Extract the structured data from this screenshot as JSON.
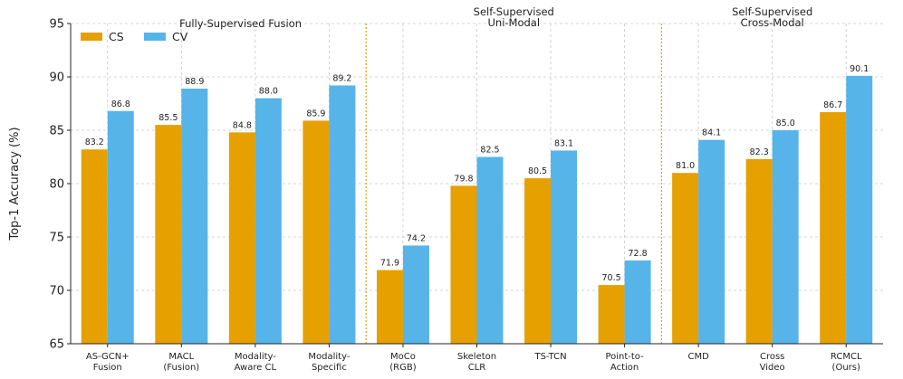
{
  "chart_data": {
    "type": "bar",
    "ylabel": "Top-1 Accuracy (%)",
    "xlabel": "",
    "ylim": [
      65,
      95
    ],
    "yticks": [
      65,
      70,
      75,
      80,
      85,
      90,
      95
    ],
    "grid": true,
    "legend_position": "top-left",
    "categories": [
      [
        "AS-GCN+",
        "Fusion"
      ],
      [
        "MACL",
        "(Fusion)"
      ],
      [
        "Modality-",
        "Aware CL"
      ],
      [
        "Modality-",
        "Specific"
      ],
      [
        "MoCo",
        "(RGB)"
      ],
      [
        "Skeleton",
        "CLR"
      ],
      [
        "TS-TCN"
      ],
      [
        "Point-to-",
        "Action"
      ],
      [
        "CMD"
      ],
      [
        "Cross",
        "Video"
      ],
      [
        "RCMCL",
        "(Ours)"
      ]
    ],
    "series": [
      {
        "name": "CS",
        "color": "#E6A000",
        "values": [
          83.2,
          85.5,
          84.8,
          85.9,
          71.9,
          79.8,
          80.5,
          70.5,
          81.0,
          82.3,
          86.7
        ]
      },
      {
        "name": "CV",
        "color": "#56B4E9",
        "values": [
          86.8,
          88.9,
          88.0,
          89.2,
          74.2,
          82.5,
          83.1,
          72.8,
          84.1,
          85.0,
          90.1
        ]
      }
    ],
    "groups": [
      {
        "label": [
          "Fully-Supervised Fusion"
        ],
        "categories": [
          0,
          1,
          2,
          3
        ]
      },
      {
        "label": [
          "Self-Supervised",
          "Uni-Modal"
        ],
        "categories": [
          4,
          5,
          6,
          7
        ]
      },
      {
        "label": [
          "Self-Supervised",
          "Cross-Modal"
        ],
        "categories": [
          8,
          9,
          10
        ]
      }
    ],
    "separator_color": "#E69F00"
  }
}
